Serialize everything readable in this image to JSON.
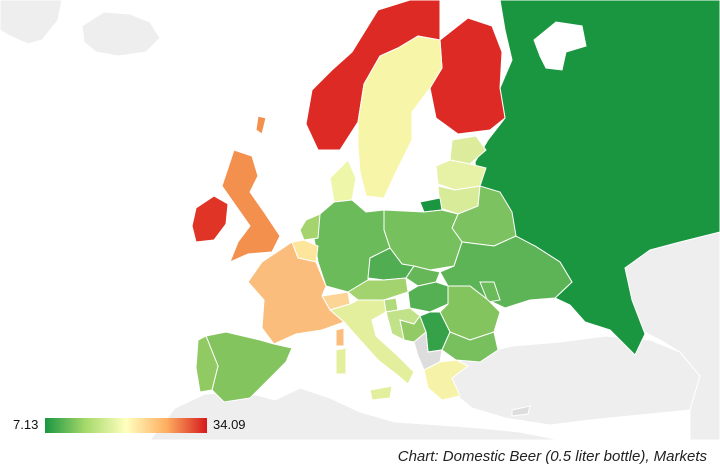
{
  "map": {
    "base_land_color": "#eeeeee",
    "ocean_color": "#ffffff",
    "border_color": "#ffffff",
    "countries": [
      {
        "name": "Russia",
        "color": "#1a9641"
      },
      {
        "name": "Norway",
        "color": "#de2a24"
      },
      {
        "name": "Finland",
        "color": "#de2a24"
      },
      {
        "name": "Sweden",
        "color": "#f7f5a8"
      },
      {
        "name": "Ireland",
        "color": "#e03426"
      },
      {
        "name": "United Kingdom",
        "color": "#f4904e"
      },
      {
        "name": "France",
        "color": "#fbbd7c"
      },
      {
        "name": "Spain",
        "color": "#84c45f"
      },
      {
        "name": "Portugal",
        "color": "#91ca63"
      },
      {
        "name": "Italy",
        "color": "#e4ef9e"
      },
      {
        "name": "Germany",
        "color": "#6cbb5b"
      },
      {
        "name": "Poland",
        "color": "#76c05d"
      },
      {
        "name": "Ukraine",
        "color": "#5db456"
      },
      {
        "name": "Belarus",
        "color": "#7dc260"
      },
      {
        "name": "Lithuania",
        "color": "#d7eb99"
      },
      {
        "name": "Latvia",
        "color": "#e8f2a6"
      },
      {
        "name": "Estonia",
        "color": "#dcec9c"
      },
      {
        "name": "Denmark",
        "color": "#eef6aa"
      },
      {
        "name": "Netherlands",
        "color": "#a5d46e"
      },
      {
        "name": "Belgium",
        "color": "#fde69b"
      },
      {
        "name": "Czech Republic",
        "color": "#50ad51"
      },
      {
        "name": "Slovakia",
        "color": "#66b758"
      },
      {
        "name": "Austria",
        "color": "#a3d36e"
      },
      {
        "name": "Hungary",
        "color": "#55b053"
      },
      {
        "name": "Romania",
        "color": "#84c45f"
      },
      {
        "name": "Bulgaria",
        "color": "#78c05e"
      },
      {
        "name": "Serbia",
        "color": "#35a249"
      },
      {
        "name": "Croatia",
        "color": "#c2e28a"
      },
      {
        "name": "Slovenia",
        "color": "#b1da7b"
      },
      {
        "name": "Bosnia",
        "color": "#92cb65"
      },
      {
        "name": "Greece",
        "color": "#f6f3a8"
      },
      {
        "name": "Switzerland",
        "color": "#fcd496"
      },
      {
        "name": "Kaliningrad",
        "color": "#1a9641"
      },
      {
        "name": "Moldova",
        "color": "#6cbb5b"
      }
    ]
  },
  "legend": {
    "min": "7.13",
    "max": "34.09",
    "gradient": [
      "#1a9641",
      "#a6d96a",
      "#ffffbf",
      "#fdae61",
      "#d7191c"
    ]
  },
  "caption": "Chart: Domestic Beer (0.5 liter bottle), Markets"
}
